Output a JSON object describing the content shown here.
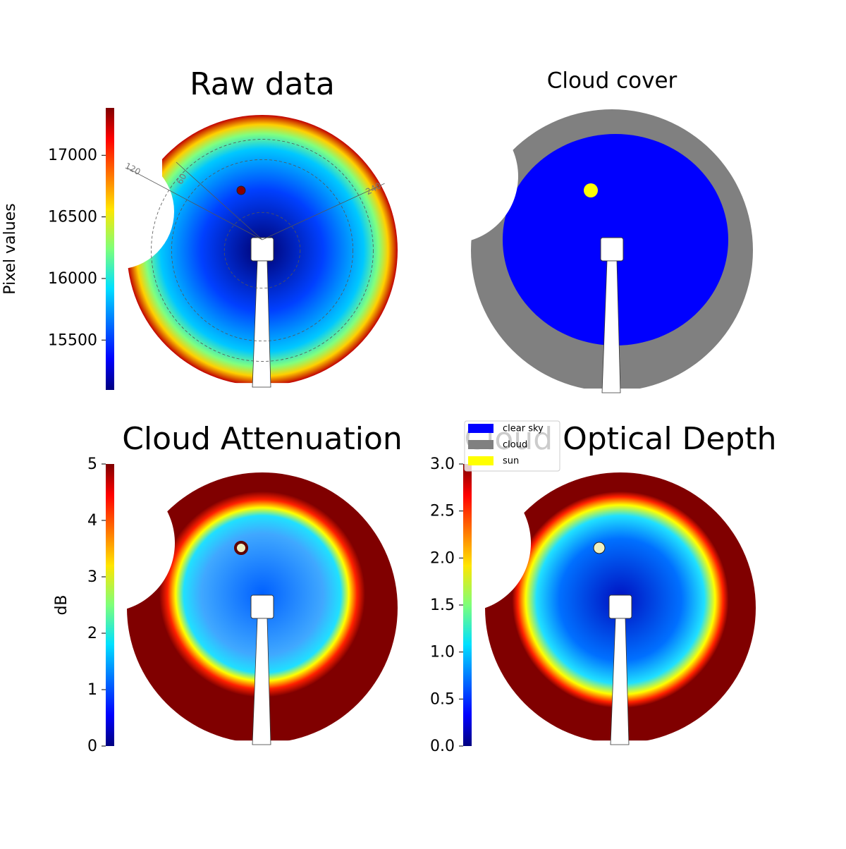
{
  "chart_data": [
    {
      "type": "image",
      "title": "Raw data",
      "colormap": "jet",
      "label": "Pixel values",
      "ylim": [
        15095,
        17385
      ],
      "yticks": [
        15500,
        16000,
        16500,
        17000
      ],
      "annotations": [
        "120",
        "60",
        "240"
      ]
    },
    {
      "type": "image",
      "title": "Cloud cover",
      "legend": [
        {
          "name": "clear sky",
          "color": "#0000ff"
        },
        {
          "name": "cloud",
          "color": "#808080"
        },
        {
          "name": "sun",
          "color": "#ffff00"
        }
      ]
    },
    {
      "type": "image",
      "title": "Cloud Attenuation",
      "colormap": "jet",
      "label": "dB",
      "ylim": [
        0,
        5
      ],
      "yticks": [
        0,
        1,
        2,
        3,
        4,
        5
      ]
    },
    {
      "type": "image",
      "title": "Cloud Optical Depth",
      "colormap": "jet",
      "ylim": [
        0,
        3
      ],
      "yticks": [
        {
          "value": 0,
          "label": "0.0"
        },
        0.5,
        {
          "value": 1,
          "label": "1.0"
        },
        1.5,
        {
          "value": 2,
          "label": "2.0"
        },
        2.5,
        {
          "value": 3,
          "label": "3.0"
        }
      ]
    }
  ]
}
